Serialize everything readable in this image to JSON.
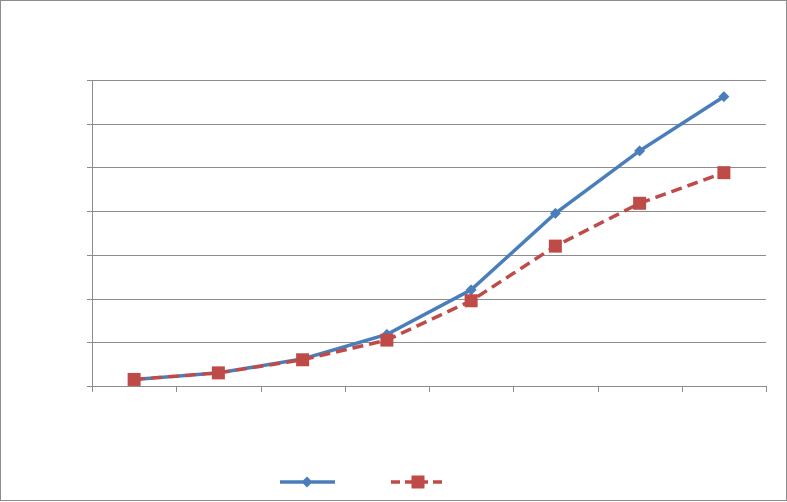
{
  "chart_data": {
    "type": "line",
    "title": "",
    "xlabel": "",
    "ylabel": "",
    "categories": [
      "",
      "",
      "",
      "",
      "",
      "",
      "",
      ""
    ],
    "ylim": [
      0,
      7
    ],
    "yticks": [
      0,
      1,
      2,
      3,
      4,
      5,
      6,
      7
    ],
    "grid": true,
    "legend_position": "bottom",
    "series": [
      {
        "color": "#4a7ebb",
        "marker": "diamond",
        "dash": "solid",
        "values": [
          0.15,
          0.3,
          0.62,
          1.18,
          2.2,
          3.95,
          5.38,
          6.62
        ]
      },
      {
        "color": "#be4b48",
        "marker": "square",
        "dash": "dashed",
        "values": [
          0.15,
          0.3,
          0.6,
          1.05,
          1.95,
          3.2,
          4.18,
          4.88
        ]
      }
    ]
  }
}
